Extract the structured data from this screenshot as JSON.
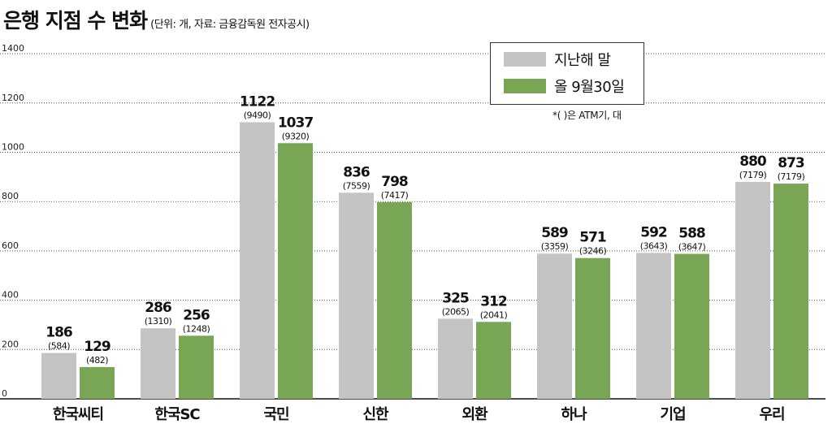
{
  "title": {
    "main": "은행 지점 수 변화",
    "sub": "(단위: 개, 자료: 금융감독원 전자공시)"
  },
  "note": "*(  )은 ATM기, 대",
  "colors": {
    "series1": "#c4c4c4",
    "series2": "#78a655"
  },
  "chart_data": {
    "type": "bar",
    "title": "은행 지점 수 변화",
    "subtitle": "(단위: 개, 자료: 금융감독원 전자공시)",
    "categories": [
      "한국씨티",
      "한국SC",
      "국민",
      "신한",
      "외환",
      "하나",
      "기업",
      "우리"
    ],
    "series": [
      {
        "name": "지난해 말",
        "values": [
          186,
          286,
          1122,
          836,
          325,
          589,
          592,
          880
        ],
        "atm": [
          "(584)",
          "(1310)",
          "(9490)",
          "(7559)",
          "(2065)",
          "(3359)",
          "(3643)",
          "(7179)"
        ]
      },
      {
        "name": "올 9월30일",
        "values": [
          129,
          256,
          1037,
          798,
          312,
          571,
          588,
          873
        ],
        "atm": [
          "(482)",
          "(1248)",
          "(9320)",
          "(7417)",
          "(2041)",
          "(3246)",
          "(3647)",
          "(7179)"
        ]
      }
    ],
    "yticks": [
      0,
      200,
      400,
      600,
      800,
      1000,
      1200,
      1400
    ],
    "ylim": [
      0,
      1400
    ],
    "grid": true,
    "legend_position": "top-right"
  }
}
